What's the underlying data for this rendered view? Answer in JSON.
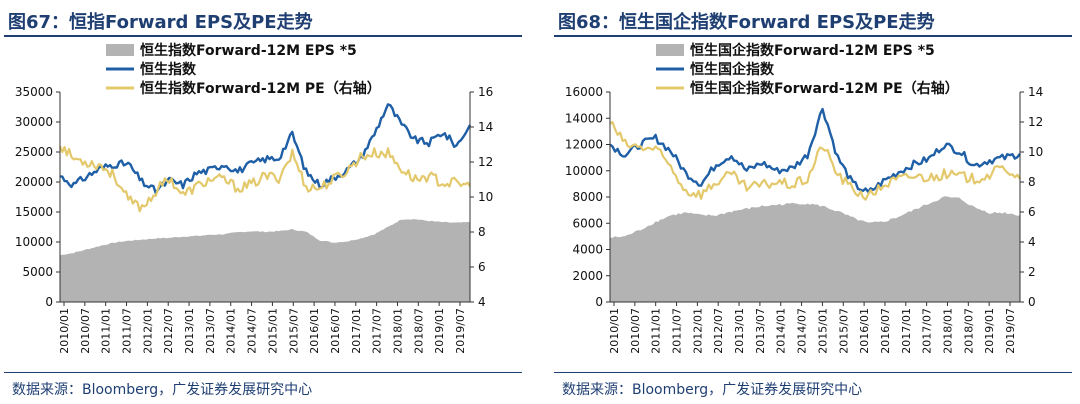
{
  "chart_data": [
    {
      "type": "area+line",
      "title": "图67：恒指Forward EPS及PE走势",
      "source": "数据来源：Bloomberg，广发证券发展研究中心",
      "legend": [
        {
          "name": "恒生指数Forward-12M EPS *5",
          "color": "#b3b3b3",
          "kind": "area"
        },
        {
          "name": "恒生指数",
          "color": "#1f5fa6",
          "kind": "line"
        },
        {
          "name": "恒生指数Forward-12M PE（右轴）",
          "color": "#e3c96b",
          "kind": "line"
        }
      ],
      "x_labels": [
        "2010/01",
        "2010/07",
        "2011/01",
        "2011/07",
        "2012/01",
        "2012/07",
        "2013/01",
        "2013/07",
        "2014/01",
        "2014/07",
        "2015/01",
        "2015/07",
        "2016/01",
        "2016/07",
        "2017/01",
        "2017/07",
        "2018/01",
        "2018/07",
        "2019/01",
        "2019/07"
      ],
      "ylim_left": [
        0,
        35000
      ],
      "yticks_left": [
        "0",
        "5000",
        "10000",
        "15000",
        "20000",
        "25000",
        "30000",
        "35000"
      ],
      "ylim_right": [
        4,
        16
      ],
      "yticks_right": [
        "4",
        "6",
        "8",
        "10",
        "12",
        "14",
        "16"
      ],
      "series": [
        {
          "name": "恒生指数Forward-12M EPS *5",
          "axis": "left",
          "values": [
            7800,
            8200,
            8800,
            9400,
            9900,
            10200,
            10400,
            10600,
            10700,
            10900,
            11000,
            11200,
            11300,
            11600,
            11800,
            11700,
            11800,
            12100,
            11700,
            10300,
            9900,
            10100,
            10600,
            11300,
            12500,
            13800,
            13800,
            13500,
            13300,
            13200,
            13300
          ]
        },
        {
          "name": "恒生指数",
          "axis": "left",
          "values": [
            21000,
            19500,
            21000,
            22300,
            23000,
            23000,
            20000,
            18500,
            20300,
            19500,
            21500,
            22000,
            23000,
            21800,
            23000,
            23800,
            24000,
            28000,
            21700,
            19500,
            20700,
            22000,
            24000,
            28000,
            33000,
            29500,
            27000,
            26500,
            28300,
            26000,
            29500
          ]
        },
        {
          "name": "恒生指数Forward-12M PE（右轴）",
          "axis": "right",
          "values": [
            13.0,
            12.2,
            12.0,
            11.8,
            11.2,
            9.8,
            9.4,
            10.3,
            11.1,
            10.1,
            10.6,
            11.0,
            11.0,
            10.5,
            10.7,
            11.2,
            11.1,
            12.5,
            10.6,
            10.5,
            11.0,
            11.5,
            12.3,
            12.5,
            12.5,
            11.6,
            11.0,
            11.2,
            10.8,
            10.8,
            10.6
          ]
        }
      ]
    },
    {
      "type": "area+line",
      "title": "图68：恒生国企指数Forward EPS及PE走势",
      "source": "数据来源：Bloomberg，广发证券发展研究中心",
      "legend": [
        {
          "name": "恒生国企指数Forward-12M EPS *5",
          "color": "#b3b3b3",
          "kind": "area"
        },
        {
          "name": "恒生国企指数",
          "color": "#1f5fa6",
          "kind": "line"
        },
        {
          "name": "恒生国企指数Forward-12M PE（右轴）",
          "color": "#e3c96b",
          "kind": "line"
        }
      ],
      "x_labels": [
        "2010/01",
        "2010/07",
        "2011/01",
        "2011/07",
        "2012/01",
        "2012/07",
        "2013/01",
        "2013/07",
        "2014/01",
        "2014/07",
        "2015/01",
        "2015/07",
        "2016/01",
        "2016/07",
        "2017/01",
        "2017/07",
        "2018/01",
        "2018/07",
        "2019/01",
        "2019/07"
      ],
      "ylim_left": [
        0,
        16000
      ],
      "yticks_left": [
        "0",
        "2000",
        "4000",
        "6000",
        "8000",
        "10000",
        "12000",
        "14000",
        "16000"
      ],
      "ylim_right": [
        0,
        14
      ],
      "yticks_right": [
        "0",
        "2",
        "4",
        "6",
        "8",
        "10",
        "12",
        "14"
      ],
      "series": [
        {
          "name": "恒生国企指数Forward-12M EPS *5",
          "axis": "left",
          "values": [
            4900,
            5000,
            5500,
            6100,
            6600,
            6800,
            6600,
            6600,
            6900,
            7100,
            7300,
            7400,
            7500,
            7500,
            7300,
            6900,
            6400,
            6000,
            6100,
            6500,
            7000,
            7500,
            8000,
            7900,
            7200,
            6800,
            6800,
            6600
          ]
        },
        {
          "name": "恒生国企指数",
          "axis": "left",
          "values": [
            12000,
            11200,
            12000,
            12500,
            11500,
            9800,
            9000,
            10500,
            11200,
            10000,
            10600,
            10000,
            10200,
            11200,
            14800,
            11000,
            9000,
            8300,
            9200,
            9900,
            10500,
            10900,
            12000,
            11500,
            10400,
            10800,
            11000,
            11300
          ]
        },
        {
          "name": "恒生国企指数Forward-12M PE（右轴）",
          "axis": "right",
          "values": [
            12.0,
            10.5,
            10.3,
            10.2,
            9.0,
            7.4,
            7.2,
            8.0,
            8.5,
            7.6,
            7.8,
            8.0,
            7.8,
            8.2,
            10.5,
            8.5,
            7.5,
            7.0,
            7.8,
            8.2,
            8.4,
            8.3,
            8.5,
            8.4,
            8.2,
            8.5,
            9.0,
            8.2
          ]
        }
      ]
    }
  ]
}
